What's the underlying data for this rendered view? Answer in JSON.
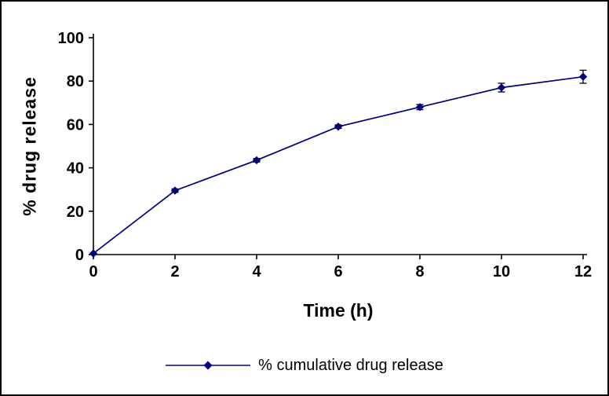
{
  "chart_data": {
    "type": "line",
    "title": "",
    "xlabel": "Time (h)",
    "ylabel": "% drug release",
    "x": [
      0,
      2,
      4,
      6,
      8,
      10,
      12
    ],
    "series": [
      {
        "name": "% cumulative drug release",
        "values": [
          0.5,
          29.5,
          43.5,
          59,
          68,
          77,
          82
        ],
        "errors": [
          0,
          0.8,
          0.8,
          0.8,
          1.2,
          2,
          3
        ],
        "color": "#000080",
        "marker": "diamond"
      }
    ],
    "xlim": [
      0,
      12
    ],
    "ylim": [
      0,
      100
    ],
    "xticks": [
      0,
      2,
      4,
      6,
      8,
      10,
      12
    ],
    "yticks": [
      0,
      20,
      40,
      60,
      80,
      100
    ],
    "grid": false,
    "legend_position": "bottom-center",
    "axis_color": "#000000",
    "error_bar_color": "#000000"
  }
}
